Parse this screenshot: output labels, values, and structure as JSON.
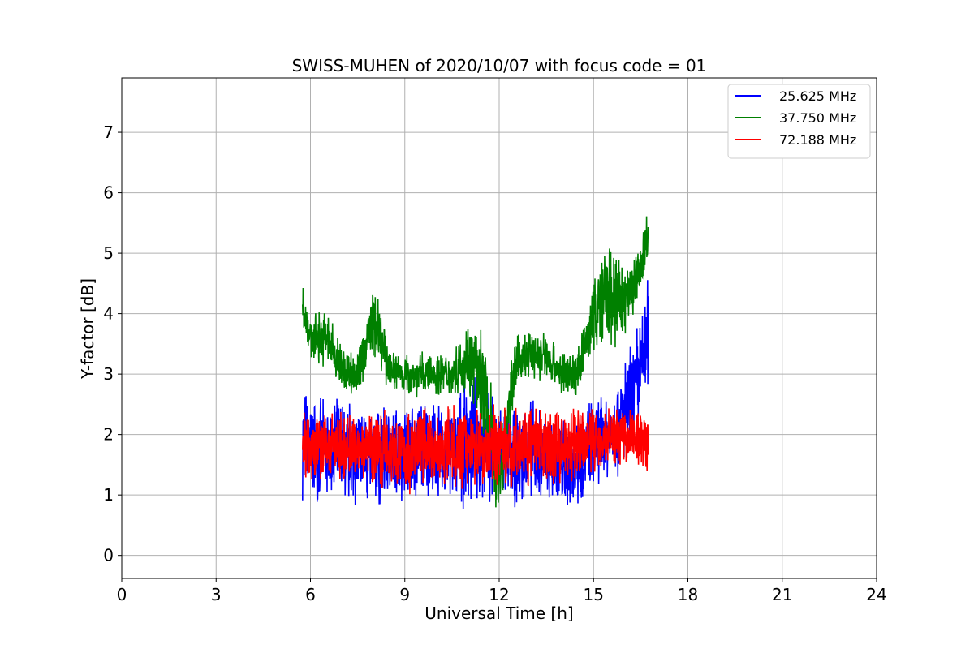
{
  "chart_data": {
    "type": "line",
    "title": "SWISS-MUHEN of 2020/10/07 with focus code = 01",
    "xlabel": "Universal Time [h]",
    "ylabel": "Y-factor [dB]",
    "xlim": [
      0,
      24
    ],
    "ylim": [
      -0.38,
      7.9
    ],
    "xticks": [
      0,
      3,
      6,
      9,
      12,
      15,
      18,
      21,
      24
    ],
    "yticks": [
      0,
      1,
      2,
      3,
      4,
      5,
      6,
      7
    ],
    "grid": true,
    "legend_position": "top-right",
    "series": [
      {
        "name": "25.625 MHz",
        "color": "#0000ff",
        "x": [
          5.75,
          6.0,
          6.5,
          7.0,
          7.5,
          8.0,
          8.5,
          9.0,
          9.5,
          10.0,
          10.5,
          11.0,
          11.5,
          12.0,
          12.5,
          13.0,
          13.5,
          14.0,
          14.5,
          15.0,
          15.5,
          16.0,
          16.5,
          16.75
        ],
        "values": [
          1.9,
          1.8,
          1.7,
          1.7,
          1.7,
          1.6,
          1.7,
          1.7,
          1.8,
          1.7,
          1.7,
          1.9,
          1.8,
          1.7,
          1.6,
          1.7,
          1.6,
          1.5,
          1.6,
          1.9,
          2.0,
          2.3,
          3.0,
          3.8
        ],
        "spread": [
          1.3,
          1.2,
          1.1,
          1.3,
          1.2,
          1.2,
          1.1,
          1.1,
          1.2,
          1.1,
          1.1,
          1.5,
          1.4,
          1.2,
          1.1,
          1.2,
          1.1,
          1.1,
          1.1,
          1.0,
          1.0,
          1.3,
          1.4,
          1.3
        ]
      },
      {
        "name": "37.750 MHz",
        "color": "#008000",
        "x": [
          5.75,
          6.0,
          6.5,
          7.0,
          7.5,
          8.0,
          8.5,
          9.0,
          9.5,
          10.0,
          10.5,
          11.0,
          11.5,
          12.0,
          12.5,
          13.0,
          13.5,
          14.0,
          14.5,
          15.0,
          15.5,
          16.0,
          16.5,
          16.75
        ],
        "values": [
          4.2,
          3.6,
          3.6,
          3.1,
          3.0,
          3.9,
          3.1,
          3.0,
          3.0,
          3.0,
          3.0,
          3.3,
          2.8,
          1.2,
          3.2,
          3.3,
          3.3,
          3.0,
          3.0,
          4.0,
          4.3,
          4.2,
          4.7,
          5.4
        ],
        "spread": [
          0.6,
          0.5,
          0.7,
          0.6,
          0.5,
          0.9,
          0.5,
          0.5,
          0.5,
          0.5,
          0.5,
          0.8,
          1.2,
          1.0,
          0.6,
          0.6,
          0.6,
          0.5,
          0.6,
          0.8,
          1.4,
          0.8,
          0.9,
          0.6
        ]
      },
      {
        "name": "72.188 MHz",
        "color": "#ff0000",
        "x": [
          5.75,
          6.0,
          6.5,
          7.0,
          7.5,
          8.0,
          8.5,
          9.0,
          9.5,
          10.0,
          10.5,
          11.0,
          11.5,
          12.0,
          12.5,
          13.0,
          13.5,
          14.0,
          14.5,
          15.0,
          15.5,
          16.0,
          16.5,
          16.75
        ],
        "values": [
          1.9,
          1.8,
          1.8,
          1.8,
          1.8,
          1.8,
          1.8,
          1.7,
          1.8,
          1.8,
          1.8,
          1.8,
          1.8,
          1.8,
          1.8,
          1.8,
          1.8,
          1.8,
          1.8,
          1.9,
          2.0,
          2.0,
          1.9,
          1.9
        ],
        "spread": [
          0.8,
          0.8,
          0.8,
          0.8,
          0.8,
          0.9,
          0.9,
          1.0,
          0.9,
          0.9,
          0.9,
          0.9,
          0.9,
          0.9,
          0.9,
          0.9,
          0.9,
          0.9,
          0.9,
          0.8,
          0.7,
          0.7,
          0.8,
          0.7
        ]
      }
    ]
  }
}
